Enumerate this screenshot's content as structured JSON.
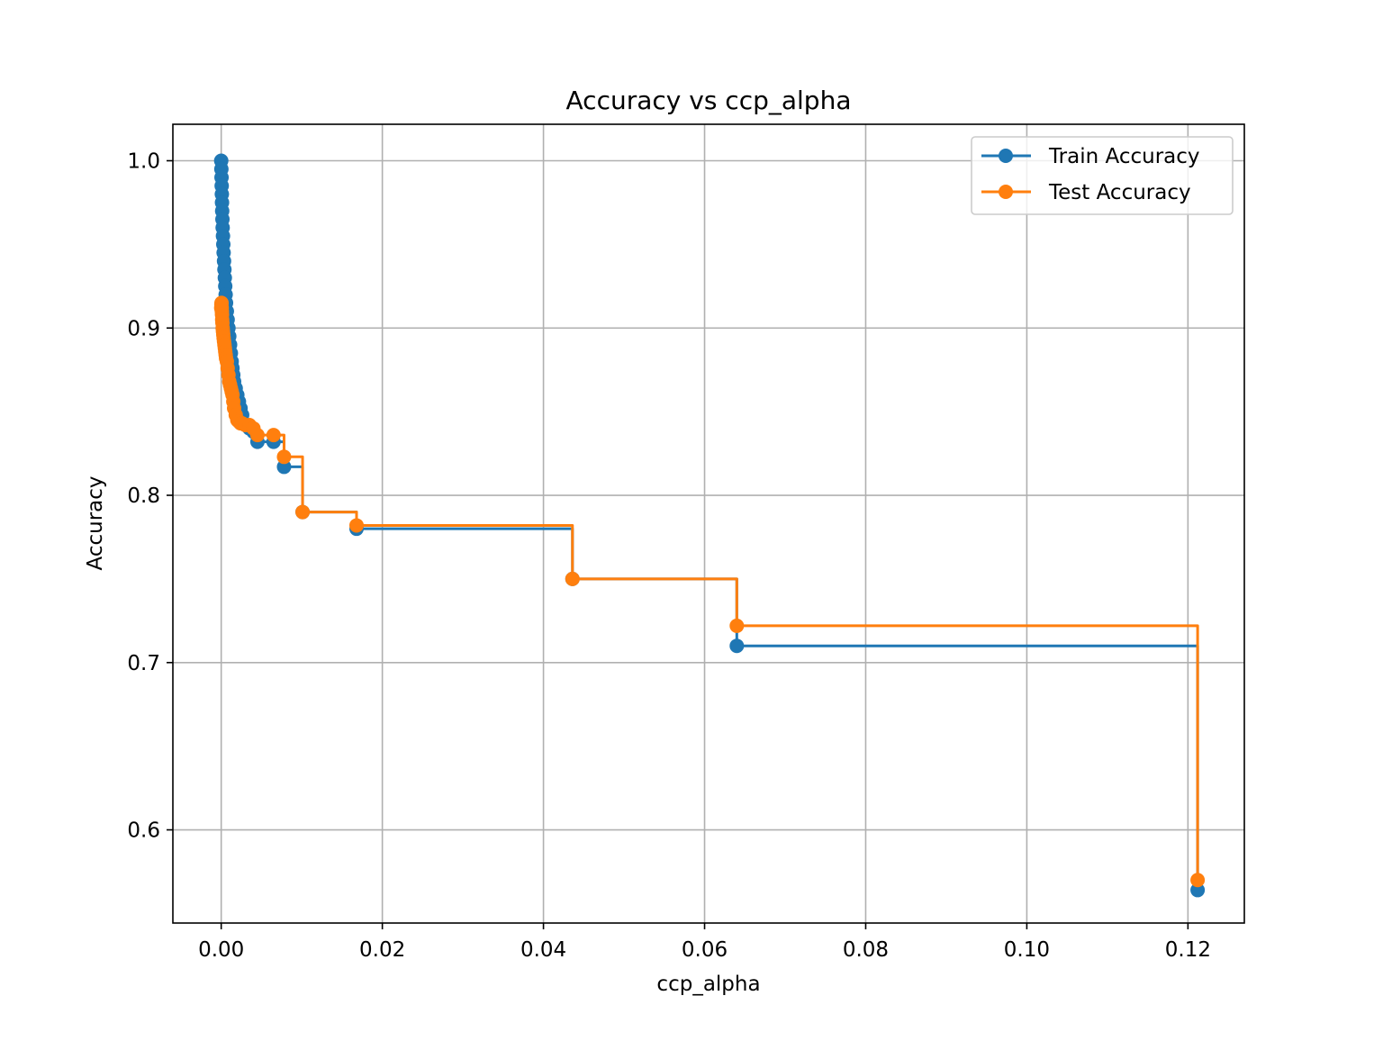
{
  "chart_data": {
    "type": "line",
    "drawstyle": "steps-post",
    "title": "Accuracy vs ccp_alpha",
    "xlabel": "ccp_alpha",
    "ylabel": "Accuracy",
    "xlim": [
      -0.006,
      0.127
    ],
    "ylim": [
      0.5443,
      1.0218
    ],
    "xticks": [
      0.0,
      0.02,
      0.04,
      0.06,
      0.08,
      0.1,
      0.12
    ],
    "xtick_labels": [
      "0.00",
      "0.02",
      "0.04",
      "0.06",
      "0.08",
      "0.10",
      "0.12"
    ],
    "yticks": [
      0.6,
      0.7,
      0.8,
      0.9,
      1.0
    ],
    "ytick_labels": [
      "0.6",
      "0.7",
      "0.8",
      "0.9",
      "1.0"
    ],
    "grid": true,
    "legend_position": "upper-right",
    "x": [
      0.0,
      2e-05,
      4e-05,
      6e-05,
      8e-05,
      0.0001,
      0.00012,
      0.00015,
      0.00018,
      0.00022,
      0.00026,
      0.0003,
      0.00035,
      0.0004,
      0.00045,
      0.0005,
      0.00055,
      0.0006,
      0.0007,
      0.0008,
      0.0009,
      0.001,
      0.0011,
      0.0012,
      0.0013,
      0.0014,
      0.0015,
      0.0016,
      0.0018,
      0.002,
      0.0022,
      0.0024,
      0.0026,
      0.003,
      0.0035,
      0.004,
      0.0045,
      0.0065,
      0.0078,
      0.0101,
      0.0168,
      0.0436,
      0.064,
      0.1212
    ],
    "series": [
      {
        "name": "Train Accuracy",
        "color": "#1f77b4",
        "values": [
          1.0,
          0.995,
          0.99,
          0.985,
          0.98,
          0.975,
          0.97,
          0.965,
          0.96,
          0.955,
          0.95,
          0.945,
          0.94,
          0.935,
          0.93,
          0.925,
          0.92,
          0.915,
          0.91,
          0.905,
          0.9,
          0.895,
          0.89,
          0.885,
          0.88,
          0.876,
          0.872,
          0.868,
          0.864,
          0.86,
          0.856,
          0.852,
          0.848,
          0.842,
          0.84,
          0.838,
          0.832,
          0.832,
          0.817,
          0.79,
          0.78,
          0.75,
          0.71,
          0.564
        ]
      },
      {
        "name": "Test Accuracy",
        "color": "#ff7f0e",
        "values": [
          0.912,
          0.914,
          0.915,
          0.912,
          0.91,
          0.908,
          0.905,
          0.903,
          0.9,
          0.898,
          0.896,
          0.894,
          0.892,
          0.89,
          0.888,
          0.886,
          0.884,
          0.882,
          0.88,
          0.876,
          0.872,
          0.868,
          0.866,
          0.864,
          0.862,
          0.86,
          0.856,
          0.852,
          0.848,
          0.845,
          0.844,
          0.843,
          0.843,
          0.842,
          0.842,
          0.84,
          0.836,
          0.836,
          0.823,
          0.79,
          0.782,
          0.75,
          0.722,
          0.57
        ]
      }
    ]
  }
}
